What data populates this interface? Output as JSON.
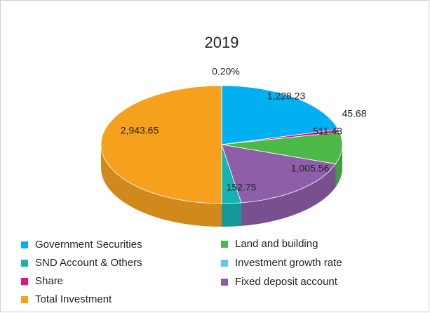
{
  "chart_data": {
    "type": "pie3d",
    "title": "2019",
    "categories": [
      "Government Securities",
      "Share",
      "Land and building",
      "Fixed deposit account",
      "SND Account & Others",
      "Total Investment",
      "Investment growth rate"
    ],
    "values": [
      1228.23,
      45.68,
      511.43,
      1005.56,
      152.75,
      2943.65,
      0.2
    ],
    "value_labels": [
      "1,228.23",
      "45.68",
      "511.43",
      "1,005.56",
      "152.75",
      "2,943.65",
      "0.20%"
    ],
    "colors": [
      "#00b0f0",
      "#e0138c",
      "#4cb848",
      "#8e5ea8",
      "#17b3b3",
      "#f5a11e",
      "#5ec8f2"
    ]
  }
}
